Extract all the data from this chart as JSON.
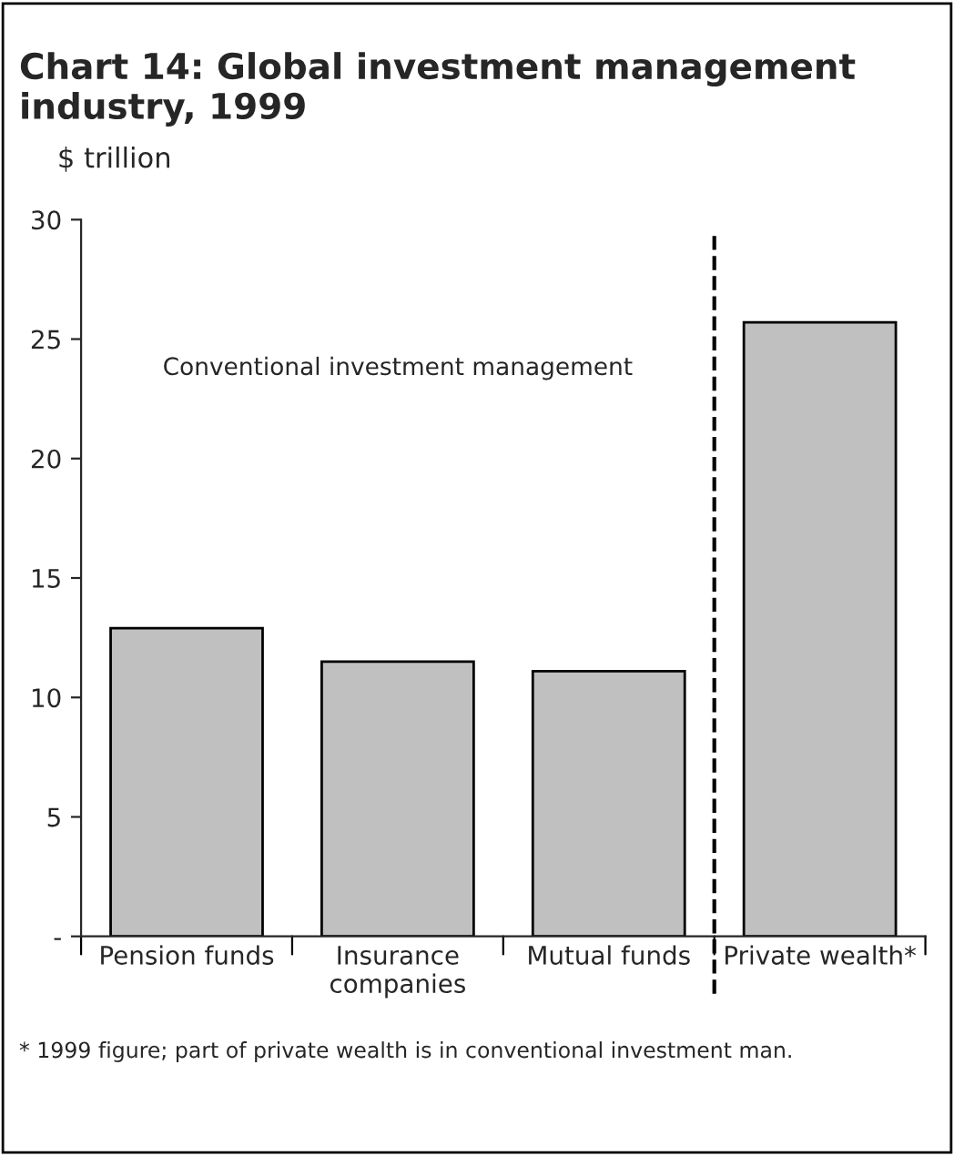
{
  "chart_data": {
    "type": "bar",
    "title": "Chart 14: Global investment management industry, 1999",
    "ylabel": "$ trillion",
    "categories": [
      "Pension funds",
      "Insurance\ncompanies",
      "Mutual funds",
      "Private wealth*"
    ],
    "values": [
      12.9,
      11.5,
      11.1,
      25.7
    ],
    "color": "#c0c0c0",
    "ylim": [
      0,
      30
    ],
    "yticks": [
      {
        "value": 0,
        "label": "-"
      },
      5,
      10,
      15,
      20,
      25,
      30
    ],
    "grid": false,
    "annotations": [
      {
        "text": "Conventional investment management"
      },
      "* 1999 figure; part of private wealth is in conventional investment man."
    ]
  }
}
